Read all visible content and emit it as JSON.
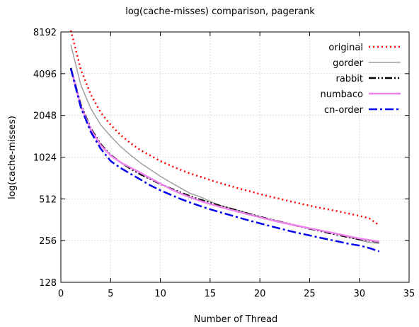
{
  "chart_data": {
    "type": "line",
    "title": "log(cache-misses) comparison, pagerank",
    "xlabel": "Number of Thread",
    "ylabel": "log(cache-misses)",
    "xlim": [
      0,
      35
    ],
    "ylim": [
      128,
      8192
    ],
    "yscale": "log2",
    "xticks": [
      0,
      5,
      10,
      15,
      20,
      25,
      30,
      35
    ],
    "yticks": [
      128,
      256,
      512,
      1024,
      2048,
      4096,
      8192
    ],
    "grid": true,
    "legend_position": "top-right",
    "series": [
      {
        "name": "original",
        "color": "#ff0000",
        "dash": "dotted",
        "x": [
          1,
          2,
          3,
          4,
          5,
          6,
          7,
          8,
          9,
          10,
          11,
          12,
          13,
          14,
          15,
          16,
          17,
          18,
          19,
          20,
          21,
          22,
          23,
          24,
          25,
          26,
          27,
          28,
          29,
          30,
          31,
          32
        ],
        "y": [
          8400,
          4400,
          2900,
          2150,
          1750,
          1480,
          1290,
          1150,
          1050,
          960,
          890,
          830,
          780,
          740,
          700,
          665,
          635,
          605,
          580,
          555,
          532,
          512,
          492,
          474,
          457,
          442,
          428,
          414,
          400,
          386,
          370,
          330
        ]
      },
      {
        "name": "gorder",
        "color": "#a0a0a0",
        "dash": "solid",
        "x": [
          1,
          2,
          3,
          4,
          5,
          6,
          7,
          8,
          9,
          10,
          11,
          12,
          13,
          14,
          15,
          16,
          17,
          18,
          19,
          20,
          21,
          22,
          23,
          24,
          25,
          26,
          27,
          28,
          29,
          30,
          31,
          32
        ],
        "y": [
          6600,
          3400,
          2300,
          1750,
          1450,
          1220,
          1060,
          930,
          830,
          745,
          675,
          615,
          560,
          530,
          490,
          460,
          440,
          420,
          400,
          382,
          366,
          352,
          338,
          325,
          314,
          303,
          292,
          282,
          270,
          258,
          248,
          244
        ]
      },
      {
        "name": "rabbit",
        "color": "#000000",
        "dash": "dashdotdot",
        "x": [
          1,
          2,
          3,
          4,
          5,
          6,
          7,
          8,
          9,
          10,
          11,
          12,
          13,
          14,
          15,
          16,
          17,
          18,
          19,
          20,
          21,
          22,
          23,
          24,
          25,
          26,
          27,
          28,
          29,
          30,
          31,
          32
        ],
        "y": [
          4500,
          2450,
          1650,
          1270,
          1060,
          940,
          845,
          770,
          710,
          655,
          610,
          570,
          535,
          505,
          480,
          456,
          436,
          416,
          397,
          380,
          364,
          350,
          337,
          324,
          312,
          301,
          290,
          280,
          270,
          262,
          256,
          250
        ]
      },
      {
        "name": "numbaco",
        "color": "#ee82ee",
        "dash": "solid",
        "x": [
          1,
          2,
          3,
          4,
          5,
          6,
          7,
          8,
          9,
          10,
          11,
          12,
          13,
          14,
          15,
          16,
          17,
          18,
          19,
          20,
          21,
          22,
          23,
          24,
          25,
          26,
          27,
          28,
          29,
          30,
          31,
          32
        ],
        "y": [
          4450,
          2400,
          1620,
          1250,
          1050,
          940,
          860,
          790,
          720,
          660,
          605,
          560,
          525,
          495,
          470,
          448,
          428,
          410,
          393,
          377,
          362,
          348,
          336,
          325,
          314,
          304,
          294,
          284,
          274,
          265,
          258,
          252
        ]
      },
      {
        "name": "cn-order",
        "color": "#0000ee",
        "dash": "dashdot",
        "x": [
          1,
          2,
          3,
          4,
          5,
          6,
          7,
          8,
          9,
          10,
          11,
          12,
          13,
          14,
          15,
          16,
          17,
          18,
          19,
          20,
          21,
          22,
          23,
          24,
          25,
          26,
          27,
          28,
          29,
          30,
          31,
          32
        ],
        "y": [
          4450,
          2350,
          1560,
          1180,
          960,
          855,
          775,
          705,
          640,
          590,
          550,
          512,
          482,
          455,
          430,
          410,
          391,
          373,
          356,
          341,
          326,
          313,
          300,
          289,
          279,
          269,
          260,
          251,
          242,
          236,
          226,
          214
        ]
      }
    ]
  }
}
